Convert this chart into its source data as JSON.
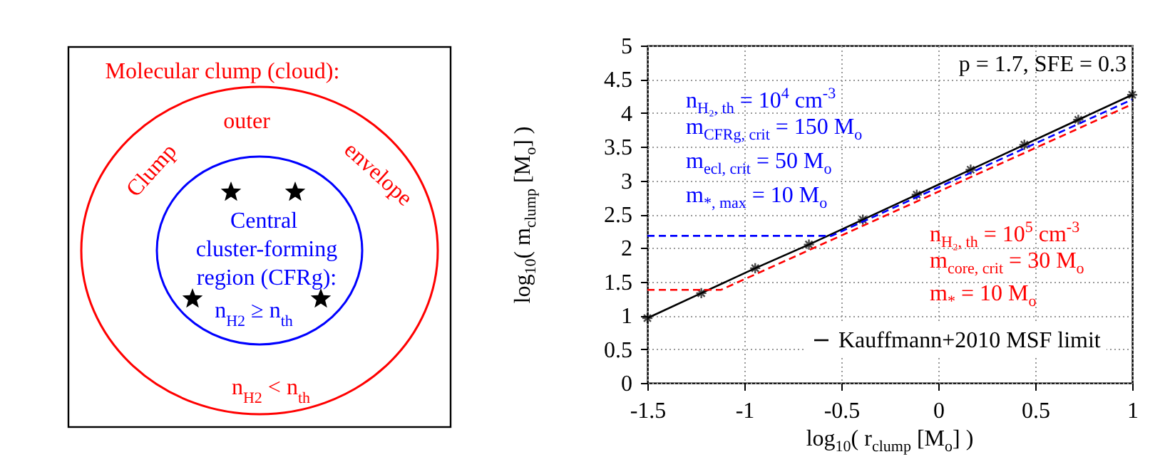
{
  "chart_data": [
    {
      "type": "other",
      "annotations": [
        "Molecular clump (cloud):",
        "outer",
        "Clump",
        "envelope",
        "Central",
        "cluster-forming",
        "region (CFRg):",
        "n$_{H2}$ ≥ n$_{th}$",
        "n$_{H2}$ < n$_{th}$"
      ]
    },
    {
      "type": "line",
      "xlabel": "log$_{10}$( r$_{clump}$ [M$_{o}$] )",
      "ylabel": "log$_{10}$( m$_{clump}$ [M$_{o}$] )",
      "xlim": [
        -1.5,
        1
      ],
      "xticks": [
        -1.5,
        -1,
        -0.5,
        0,
        0.5,
        1
      ],
      "ylim": [
        0,
        5
      ],
      "yticks": [
        0,
        0.5,
        1,
        1.5,
        2,
        2.5,
        3,
        3.5,
        4,
        4.5,
        5
      ],
      "grid": true,
      "legend": "bottom right",
      "series": [
        {
          "name": "Kauffmann+2010 MSF limit",
          "color": "#000000",
          "marker": "cross",
          "line_style": "solid",
          "x": [
            -1.5,
            -1.222,
            -0.944,
            -0.667,
            -0.389,
            -0.111,
            0.167,
            0.444,
            0.722,
            1.0
          ],
          "values": [
            0.96,
            1.33,
            1.7,
            2.05,
            2.42,
            2.79,
            3.16,
            3.53,
            3.9,
            4.27
          ]
        },
        {
          "color": "#0000ff",
          "marker": "none",
          "line_style": "dashed",
          "x": [
            -1.5,
            -0.55,
            1
          ],
          "values": [
            2.18,
            2.18,
            4.2
          ]
        },
        {
          "color": "#ff0000",
          "marker": "none",
          "line_style": "dashed",
          "x": [
            -1.5,
            -1.12,
            1
          ],
          "values": [
            1.38,
            1.38,
            4.13
          ]
        }
      ],
      "annotations": [
        "p = 1.7, SFE = 0.3",
        "n$_{H₂, th}$ = 10$^{4}$ cm$^{-3}$",
        "m$_{CFRg, crit}$ = 150 M$_{o}$",
        "m$_{ecl, crit}$ = 50 M$_{o}$",
        "m$_{*, max}$ = 10 M$_{o}$",
        "n$_{H₂, th}$ = 10$^{5}$ cm$^{-3}$",
        "m$_{core, crit}$ = 30 M$_{o}$",
        "m$_{*}$ = 10 M$_{o}$"
      ]
    }
  ]
}
